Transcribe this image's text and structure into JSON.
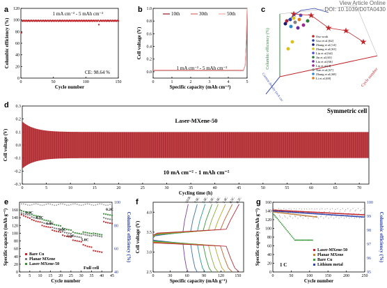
{
  "header": {
    "link_text": "View Article Online",
    "doi": "DOI: 10.1039/D0TA0430"
  },
  "panels": {
    "a": {
      "letter": "a"
    },
    "b": {
      "letter": "b"
    },
    "c": {
      "letter": "c"
    },
    "d": {
      "letter": "d"
    },
    "e": {
      "letter": "e"
    },
    "f": {
      "letter": "f"
    },
    "g": {
      "letter": "g"
    }
  },
  "chart_data": [
    {
      "id": "a",
      "type": "scatter",
      "xlabel": "Cycle number",
      "ylabel": "Columbic efficiency (%)",
      "xlim": [
        0,
        150
      ],
      "ylim": [
        0,
        120
      ],
      "xticks": [
        0,
        50,
        100,
        150
      ],
      "yticks": [
        0,
        20,
        40,
        60,
        80,
        100,
        120
      ],
      "annotation": "1 mA cm⁻² - 5 mAh cm⁻²",
      "ce_text": "CE: 98.64 %",
      "series": [
        {
          "name": "",
          "color": "#c0262c",
          "y_mean": 98.64,
          "n": 150,
          "outliers": [
            [
              1,
              78
            ],
            [
              120,
              92
            ]
          ]
        }
      ]
    },
    {
      "id": "b",
      "type": "line",
      "xlabel": "Specific capacity (mAh cm⁻²)",
      "ylabel": "Cell voltage (V)",
      "xlim": [
        0,
        5
      ],
      "ylim": [
        -0.1,
        1.0
      ],
      "xticks": [
        0,
        1,
        2,
        3,
        4,
        5
      ],
      "yticks": [
        0.0,
        0.2,
        0.4,
        0.6,
        0.8,
        1.0
      ],
      "annotation": "1 mA cm⁻² - 5 mAh cm⁻²",
      "legend": [
        "10th",
        "30th",
        "50th"
      ],
      "series_colors": [
        "#8b1a1a",
        "#d46a6a",
        "#f2a6a6"
      ]
    },
    {
      "id": "c",
      "type": "scatter3d",
      "ylabel": "Columbic efficiency (%)",
      "xlabel": "Cycle number",
      "zlabel": "Current density (mA cm⁻²)",
      "legend": [
        "Our work",
        "Guo et al.[62]",
        "Zhang et al.[14]",
        "Zhang et al.[63]",
        "Liu et al.[64]",
        "Jin et al.[65]",
        "Liu et al.[66]",
        "Liu et al.[4]",
        "Nan et al.[67]",
        "Zhang et al.[68]",
        "Li et al.[69]"
      ],
      "legend_colors": [
        "#c0262c",
        "#2a3fa8",
        "#1a1a6e",
        "#d9c21a",
        "#4b4bd0",
        "#2b7a3a",
        "#6a2aa0",
        "#a02a8a",
        "#808080",
        "#2a8ad0",
        "#e07a1a"
      ]
    },
    {
      "id": "d",
      "type": "area",
      "title": "Symmetric cell",
      "label": "Laser-MXene-50",
      "xlabel": "Cycling time (h)",
      "ylabel": "Cell voltage (V)",
      "annotation": "10 mA cm⁻² - 1 mAh cm⁻²",
      "xlim": [
        0,
        72
      ],
      "ylim": [
        -0.3,
        0.3
      ],
      "xticks": [
        0,
        5,
        10,
        15,
        20,
        25,
        30,
        35,
        40,
        45,
        50,
        55,
        60,
        65,
        70
      ],
      "yticks": [
        -0.3,
        -0.2,
        -0.1,
        0.0,
        0.1,
        0.2,
        0.3
      ],
      "envelope": {
        "start_amplitude": 0.18,
        "steady_amplitude": 0.1
      },
      "color": "#c0262c"
    },
    {
      "id": "e",
      "type": "scatter",
      "xlabel": "Cycle number",
      "ylabel": "Specific capacity (mAh g⁻¹)",
      "ylabel2": "Columbic efficiency (%)",
      "xlim": [
        0,
        45
      ],
      "ylim": [
        0,
        180
      ],
      "y2lim": [
        40,
        100
      ],
      "xticks": [
        0,
        5,
        10,
        15,
        20,
        25,
        30,
        35,
        40,
        45
      ],
      "yticks": [
        0,
        20,
        40,
        60,
        80,
        100,
        120,
        140,
        160
      ],
      "y2ticks": [
        40,
        60,
        80,
        100
      ],
      "rate_labels": [
        "0.2C",
        "0.5C",
        "1.0C",
        "2.0C",
        "3.0C",
        "5.0C",
        "0.2C"
      ],
      "series": [
        {
          "name": "Bare Cu",
          "color": "#c0262c",
          "values": [
            148,
            145,
            143,
            141,
            139,
            135,
            133,
            131,
            130,
            129,
            120,
            118,
            117,
            116,
            115,
            108,
            106,
            105,
            104,
            103,
            95,
            93,
            92,
            91,
            90,
            82,
            81,
            80,
            79,
            78,
            70,
            68,
            66,
            65,
            64,
            55,
            54,
            53,
            52,
            51,
            130,
            128,
            127,
            126,
            125
          ]
        },
        {
          "name": "Planar MXene",
          "color": "#7a7a7a",
          "values": [
            152,
            150,
            149,
            148,
            147,
            142,
            140,
            139,
            138,
            137,
            128,
            126,
            125,
            124,
            123,
            115,
            113,
            112,
            111,
            110,
            104,
            102,
            101,
            100,
            99,
            94,
            92,
            91,
            90,
            89,
            98,
            96,
            95,
            94,
            93,
            95,
            94,
            93,
            92,
            91,
            140,
            138,
            137,
            136,
            135
          ]
        },
        {
          "name": "Laser-MXene-50",
          "color": "#3a8a3a",
          "values": [
            158,
            156,
            155,
            154,
            153,
            148,
            146,
            145,
            144,
            143,
            136,
            134,
            133,
            132,
            131,
            124,
            122,
            121,
            120,
            119,
            113,
            111,
            110,
            109,
            108,
            103,
            101,
            100,
            99,
            98,
            103,
            102,
            101,
            100,
            99,
            100,
            99,
            98,
            97,
            96,
            150,
            149,
            148,
            147,
            146
          ]
        }
      ],
      "ce_values_level": 98,
      "full_cell_label": "Full cell"
    },
    {
      "id": "f",
      "type": "line",
      "xlabel": "Specific capacity (mAh g⁻¹)",
      "ylabel": "Cell voltage (V)",
      "xlim": [
        0,
        160
      ],
      "ylim": [
        2.5,
        4.25
      ],
      "xticks": [
        0,
        30,
        60,
        90,
        120,
        150
      ],
      "yticks": [
        2.5,
        3.0,
        3.5,
        4.0
      ],
      "rates": [
        "10.0C",
        "7.0C",
        "5.0C",
        "3.0C",
        "2.0C",
        "1.0C",
        "0.5C",
        "0.2C"
      ],
      "end_capacities": [
        62,
        78,
        92,
        104,
        115,
        128,
        140,
        152
      ],
      "series_colors": [
        "#7b3f9e",
        "#3f6fb0",
        "#2a9a8a",
        "#3a9a3a",
        "#8ab03a",
        "#c0a02a",
        "#c0602a",
        "#b02a3a"
      ]
    },
    {
      "id": "g",
      "type": "scatter",
      "xlabel": "Cycle number",
      "ylabel": "Specific capacity (mAh g⁻¹)",
      "ylabel2": "Columbic efficiency (%)",
      "xlim": [
        0,
        250
      ],
      "ylim": [
        0,
        160
      ],
      "y2lim": [
        95,
        100
      ],
      "xticks": [
        0,
        50,
        100,
        150,
        200,
        250
      ],
      "yticks": [
        0,
        20,
        40,
        60,
        80,
        100,
        120,
        140,
        160
      ],
      "y2ticks": [
        95,
        96,
        97,
        98,
        99,
        100
      ],
      "rate_text": "1 C",
      "series": [
        {
          "name": "Laser-MXene-50",
          "color": "#c0262c",
          "start": 142,
          "end": 131,
          "n_end": 250
        },
        {
          "name": "Planar MXene",
          "color": "#c08040",
          "start": 138,
          "end": 126,
          "n_end": 120
        },
        {
          "name": "Bare Cu",
          "color": "#3a9a3a",
          "start": 135,
          "end": 73,
          "n_end": 110
        },
        {
          "name": "Lithium metal",
          "color": "#2a3fa8",
          "start": 140,
          "end": 126,
          "n_end": 250
        }
      ]
    }
  ]
}
